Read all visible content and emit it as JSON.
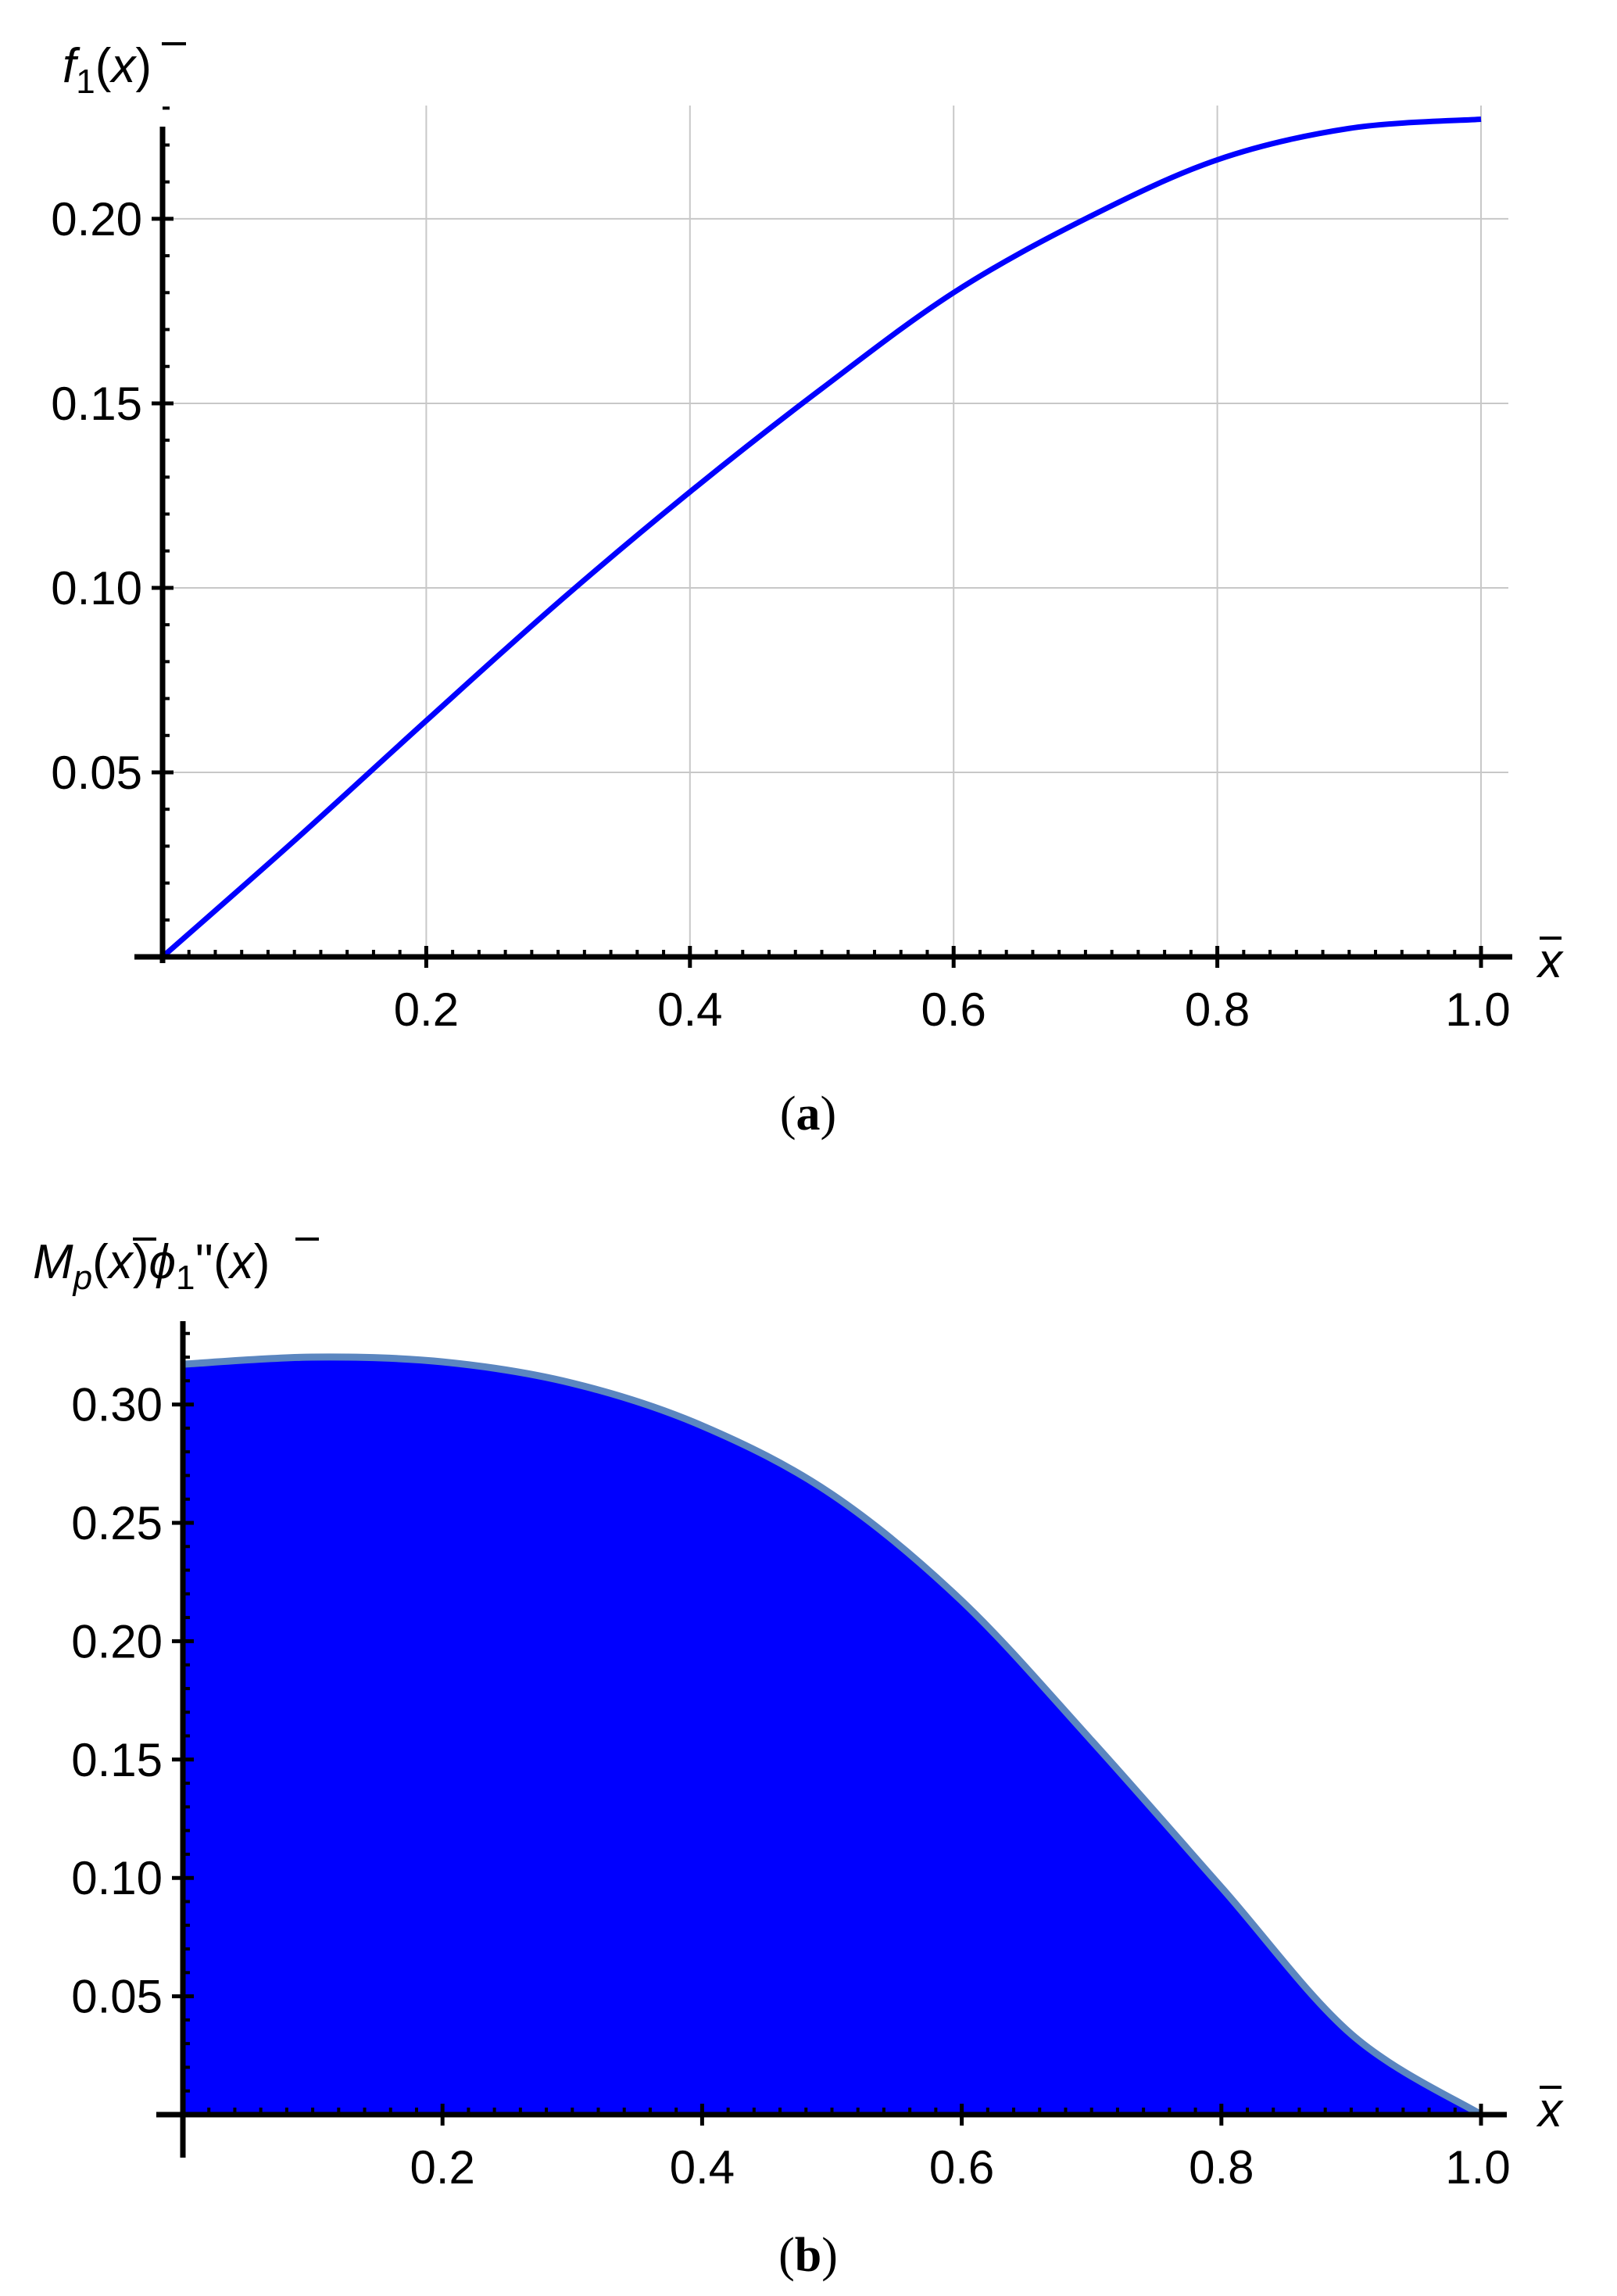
{
  "chart_data": [
    {
      "type": "line",
      "caption_letter": "a",
      "ylabel": "f1(x̄)",
      "xlabel": "x̄",
      "xlim": [
        0,
        1.0
      ],
      "ylim": [
        0,
        0.2307
      ],
      "x_ticks": [
        0.2,
        0.4,
        0.6,
        0.8,
        1.0
      ],
      "x_tick_labels": [
        "0.2",
        "0.4",
        "0.6",
        "0.8",
        "1.0"
      ],
      "y_ticks": [
        0.05,
        0.1,
        0.15,
        0.2
      ],
      "y_tick_labels": [
        "0.05",
        "0.10",
        "0.15",
        "0.20"
      ],
      "grid": true,
      "color": "#0000ff",
      "series": [
        {
          "x": [
            0,
            0.1,
            0.2,
            0.3,
            0.4,
            0.5,
            0.6,
            0.7,
            0.8,
            0.9,
            1.0
          ],
          "values": [
            0,
            0.0315,
            0.064,
            0.096,
            0.126,
            0.154,
            0.18,
            0.2,
            0.216,
            0.2245,
            0.227
          ]
        }
      ]
    },
    {
      "type": "area",
      "caption_letter": "b",
      "ylabel": "Mp(x̄)ϕ1''(x̄)",
      "xlabel": "x̄",
      "xlim": [
        0,
        1.0
      ],
      "ylim": [
        0,
        0.3385
      ],
      "x_ticks": [
        0.2,
        0.4,
        0.6,
        0.8,
        1.0
      ],
      "x_tick_labels": [
        "0.2",
        "0.4",
        "0.6",
        "0.8",
        "1.0"
      ],
      "y_ticks": [
        0.05,
        0.1,
        0.15,
        0.2,
        0.25,
        0.3
      ],
      "y_tick_labels": [
        "0.05",
        "0.10",
        "0.15",
        "0.20",
        "0.25",
        "0.30"
      ],
      "grid": false,
      "fill_color": "#0000ff",
      "line_color": "#5b86c0",
      "series": [
        {
          "x": [
            0,
            0.1,
            0.2,
            0.3,
            0.4,
            0.5,
            0.6,
            0.7,
            0.8,
            0.9,
            1.0
          ],
          "values": [
            0.317,
            0.32,
            0.318,
            0.309,
            0.291,
            0.262,
            0.217,
            0.158,
            0.096,
            0.034,
            0
          ]
        }
      ]
    }
  ]
}
